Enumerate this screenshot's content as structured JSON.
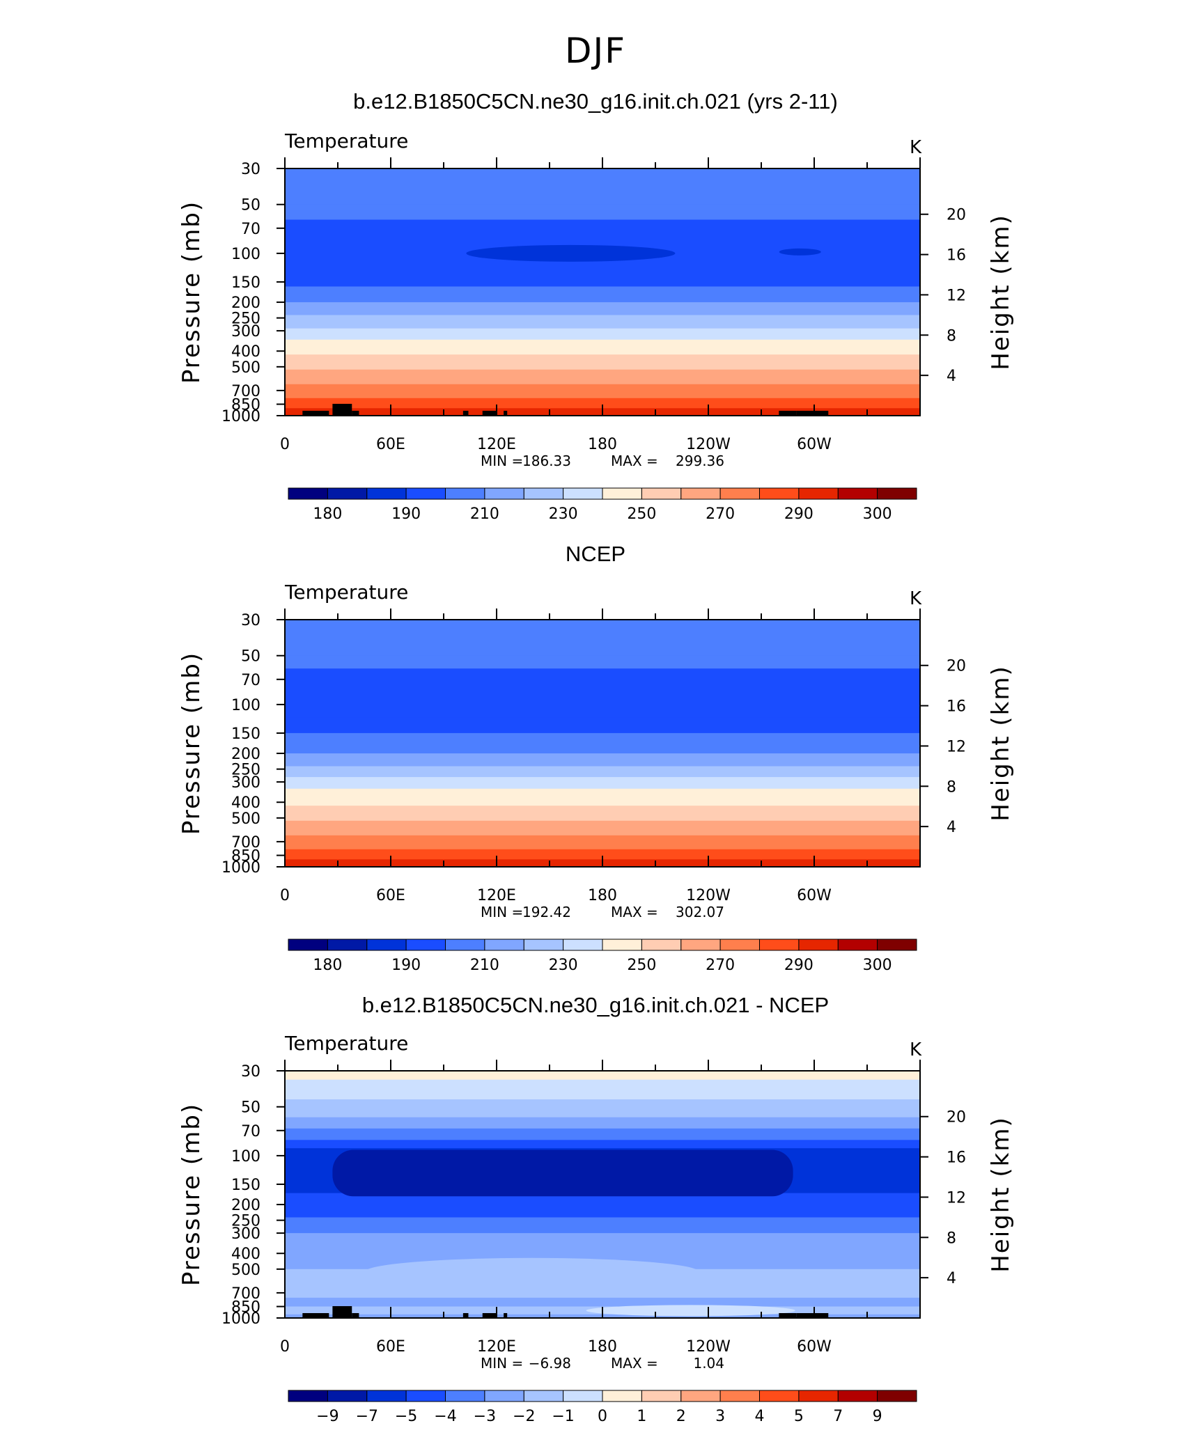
{
  "page_title": "DJF",
  "colors": {
    "temperature_scale": [
      "#00007f",
      "#0019a6",
      "#0033d9",
      "#1a4dff",
      "#4d7fff",
      "#80a6ff",
      "#a6c4ff",
      "#cce0ff",
      "#fff0d9",
      "#ffcdb3",
      "#ffa680",
      "#ff7f4d",
      "#ff4d1a",
      "#e62600",
      "#b30000",
      "#7f0000"
    ],
    "land_mask": "#000000"
  },
  "chart_data": [
    {
      "type": "heatmap",
      "title": "b.e12.B1850C5CN.ne30_g16.init.ch.021 (yrs 2-11)",
      "left_label": "Temperature",
      "right_label": "K",
      "ylabel": "Pressure (mb)",
      "ylabel_right": "Height (km)",
      "x_ticks": [
        "0",
        "60E",
        "120E",
        "180",
        "120W",
        "60W"
      ],
      "x_range": [
        0,
        360
      ],
      "y_ticks": [
        "30",
        "50",
        "70",
        "100",
        "150",
        "200",
        "250",
        "300",
        "400",
        "500",
        "700",
        "850",
        "1000"
      ],
      "y_range": [
        1000,
        30
      ],
      "y_scale": "log",
      "height_ticks": [
        "20",
        "16",
        "12",
        "8",
        "4"
      ],
      "stats": {
        "min": "186.33",
        "max": "299.36"
      },
      "colorbar_labels": [
        "180",
        "190",
        "210",
        "230",
        "250",
        "270",
        "290",
        "300"
      ],
      "profile_levels": [
        {
          "p": 30,
          "band": 4
        },
        {
          "p": 40,
          "band": 4
        },
        {
          "p": 50,
          "band": 4
        },
        {
          "p": 62,
          "band": 3
        },
        {
          "p": 100,
          "band": 3
        },
        {
          "p": 140,
          "band": 3
        },
        {
          "p": 160,
          "band": 4
        },
        {
          "p": 200,
          "band": 5
        },
        {
          "p": 240,
          "band": 6
        },
        {
          "p": 290,
          "band": 7
        },
        {
          "p": 340,
          "band": 8
        },
        {
          "p": 420,
          "band": 9
        },
        {
          "p": 520,
          "band": 10
        },
        {
          "p": 640,
          "band": 11
        },
        {
          "p": 780,
          "band": 12
        },
        {
          "p": 900,
          "band": 13
        },
        {
          "p": 1000,
          "band": 13
        }
      ]
    },
    {
      "type": "heatmap",
      "title": "NCEP",
      "left_label": "Temperature",
      "right_label": "K",
      "ylabel": "Pressure (mb)",
      "ylabel_right": "Height (km)",
      "x_ticks": [
        "0",
        "60E",
        "120E",
        "180",
        "120W",
        "60W"
      ],
      "x_range": [
        0,
        360
      ],
      "y_ticks": [
        "30",
        "50",
        "70",
        "100",
        "150",
        "200",
        "250",
        "300",
        "400",
        "500",
        "700",
        "850",
        "1000"
      ],
      "y_range": [
        1000,
        30
      ],
      "y_scale": "log",
      "height_ticks": [
        "20",
        "16",
        "12",
        "8",
        "4"
      ],
      "stats": {
        "min": "192.42",
        "max": "302.07"
      },
      "colorbar_labels": [
        "180",
        "190",
        "210",
        "230",
        "250",
        "270",
        "290",
        "300"
      ],
      "profile_levels": [
        {
          "p": 30,
          "band": 4
        },
        {
          "p": 50,
          "band": 4
        },
        {
          "p": 60,
          "band": 3
        },
        {
          "p": 120,
          "band": 3
        },
        {
          "p": 150,
          "band": 4
        },
        {
          "p": 200,
          "band": 5
        },
        {
          "p": 240,
          "band": 6
        },
        {
          "p": 280,
          "band": 7
        },
        {
          "p": 330,
          "band": 8
        },
        {
          "p": 420,
          "band": 9
        },
        {
          "p": 520,
          "band": 10
        },
        {
          "p": 640,
          "band": 11
        },
        {
          "p": 780,
          "band": 12
        },
        {
          "p": 900,
          "band": 13
        },
        {
          "p": 1000,
          "band": 14
        }
      ]
    },
    {
      "type": "heatmap",
      "title": "b.e12.B1850C5CN.ne30_g16.init.ch.021 - NCEP",
      "left_label": "Temperature",
      "right_label": "K",
      "ylabel": "Pressure (mb)",
      "ylabel_right": "Height (km)",
      "x_ticks": [
        "0",
        "60E",
        "120E",
        "180",
        "120W",
        "60W"
      ],
      "x_range": [
        0,
        360
      ],
      "y_ticks": [
        "30",
        "50",
        "70",
        "100",
        "150",
        "200",
        "250",
        "300",
        "400",
        "500",
        "700",
        "850",
        "1000"
      ],
      "y_range": [
        1000,
        30
      ],
      "y_scale": "log",
      "height_ticks": [
        "20",
        "16",
        "12",
        "8",
        "4"
      ],
      "stats": {
        "min": "−6.98",
        "max": "1.04"
      },
      "colorbar_labels": [
        "−9",
        "−7",
        "−5",
        "−4",
        "−3",
        "−2",
        "−1",
        "0",
        "1",
        "2",
        "3",
        "4",
        "5",
        "7",
        "9"
      ],
      "profile_levels": [
        {
          "p": 30,
          "band": 8
        },
        {
          "p": 34,
          "band": 7
        },
        {
          "p": 45,
          "band": 6
        },
        {
          "p": 58,
          "band": 5
        },
        {
          "p": 68,
          "band": 4
        },
        {
          "p": 80,
          "band": 3
        },
        {
          "p": 90,
          "band": 2
        },
        {
          "p": 170,
          "band": 3
        },
        {
          "p": 240,
          "band": 4
        },
        {
          "p": 300,
          "band": 5
        },
        {
          "p": 500,
          "band": 6
        },
        {
          "p": 750,
          "band": 5
        },
        {
          "p": 850,
          "band": 6
        },
        {
          "p": 950,
          "band": 5
        },
        {
          "p": 1000,
          "band": 4
        }
      ]
    }
  ]
}
